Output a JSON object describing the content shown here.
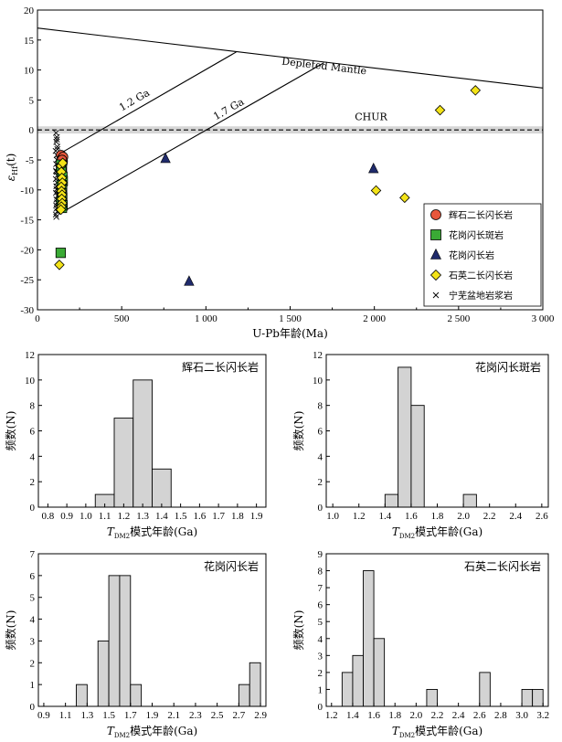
{
  "chart_data": [
    {
      "type": "scatter",
      "xlabel": "U-Pb年龄(Ma)",
      "ylabel_main": "ε",
      "ylabel_sub": "Hf",
      "ylabel_tail": "(t)",
      "xlim": [
        0,
        3000
      ],
      "ylim": [
        -30,
        20
      ],
      "xticks": [
        0,
        500,
        1000,
        1500,
        2000,
        2500,
        3000
      ],
      "xtick_labels": [
        "0",
        "500",
        "1 000",
        "1 500",
        "2 000",
        "2 500",
        "3 000"
      ],
      "yticks": [
        -30,
        -25,
        -20,
        -15,
        -10,
        -5,
        0,
        5,
        10,
        15,
        20
      ],
      "ytick_labels": [
        "-30",
        "-25",
        "-20",
        "-15",
        "-10",
        "-5",
        "0",
        "5",
        "10",
        "15",
        "20"
      ],
      "reference_lines": [
        {
          "name": "Depleted Mantle",
          "label": "Depleted Mantle",
          "x": [
            0,
            3000
          ],
          "y": [
            17,
            7
          ]
        },
        {
          "name": "CHUR",
          "label": "CHUR",
          "x": [
            0,
            3000
          ],
          "y": [
            0,
            0
          ]
        },
        {
          "name": "1.2 Ga",
          "label": "1.2 Ga",
          "x": [
            130,
            1180
          ],
          "y": [
            -4,
            13
          ]
        },
        {
          "name": "1.7 Ga",
          "label": "1.7 Ga",
          "x": [
            130,
            1700
          ],
          "y": [
            -14,
            11.2
          ]
        }
      ],
      "series": [
        {
          "name": "辉石二长闪长岩",
          "marker": "circle",
          "color": "#e8573c",
          "x": [
            140,
            145,
            150,
            148,
            152,
            146
          ],
          "y": [
            -4.2,
            -4.8,
            -5.2,
            -5.6,
            -4.5,
            -5.0
          ]
        },
        {
          "name": "花岗闪长斑岩",
          "marker": "square",
          "color": "#3aaa35",
          "x": [
            140,
            145,
            142,
            148,
            150,
            143,
            146,
            144,
            147,
            141,
            149,
            145,
            138
          ],
          "y": [
            -5.8,
            -6.4,
            -7.0,
            -7.8,
            -8.5,
            -9.2,
            -10.0,
            -10.6,
            -11.3,
            -12.0,
            -12.6,
            -13.0,
            -20.5
          ]
        },
        {
          "name": "花岗闪长岩",
          "marker": "triangle",
          "color": "#1f2a6b",
          "x": [
            760,
            900,
            1995
          ],
          "y": [
            -4.8,
            -25.3,
            -6.5
          ]
        },
        {
          "name": "石英二长闪长岩",
          "marker": "diamond",
          "color": "#f3e318",
          "x": [
            2600,
            2390,
            2010,
            2180,
            140,
            142,
            145,
            148,
            141,
            143,
            146,
            144,
            147,
            142,
            139,
            150,
            130
          ],
          "y": [
            6.6,
            3.3,
            -10.1,
            -11.3,
            -6.0,
            -7.0,
            -8.0,
            -8.8,
            -9.5,
            -10.2,
            -10.8,
            -11.5,
            -12.2,
            -12.8,
            -13.3,
            -5.5,
            -22.5
          ]
        },
        {
          "name": "宁芜盆地岩浆岩",
          "marker": "x",
          "color": "#000000",
          "x": [
            110,
            115,
            112,
            118,
            108,
            114,
            116,
            111,
            119,
            113,
            117,
            109,
            115,
            112,
            120,
            110,
            118,
            113,
            116,
            111,
            114,
            117,
            109,
            112,
            115,
            118,
            110,
            113
          ],
          "y": [
            -0.5,
            -1.2,
            -2.0,
            -2.8,
            -3.5,
            -4.2,
            -5.0,
            -5.7,
            -6.3,
            -7.0,
            -7.6,
            -8.2,
            -8.8,
            -9.4,
            -10.0,
            -10.5,
            -11.0,
            -11.6,
            -12.1,
            -12.6,
            -13.1,
            -13.6,
            -14.1,
            -14.5,
            -1.6,
            -3.2,
            -6.8,
            -9.9
          ]
        }
      ],
      "legend_position": "lower-right"
    },
    {
      "type": "bar",
      "panel_title": "辉石二长闪长岩",
      "xlabel_pre": "T",
      "xlabel_sub": "DM2",
      "xlabel_post": "模式年龄(Ga)",
      "ylabel": "频数(N)",
      "xlim": [
        0.75,
        1.95
      ],
      "ylim": [
        0,
        12
      ],
      "bin_width": 0.1,
      "bin_centers": [
        1.1,
        1.2,
        1.3,
        1.4
      ],
      "values": [
        1,
        7,
        10,
        3
      ],
      "xticks": [
        "0.8",
        "0.9",
        "1.0",
        "1.1",
        "1.2",
        "1.3",
        "1.4",
        "1.5",
        "1.6",
        "1.7",
        "1.8",
        "1.9"
      ],
      "yticks": [
        "0",
        "2",
        "4",
        "6",
        "8",
        "10",
        "12"
      ]
    },
    {
      "type": "bar",
      "panel_title": "花岗闪长斑岩",
      "xlabel_pre": "T",
      "xlabel_sub": "DM2",
      "xlabel_post": "模式年龄(Ga)",
      "ylabel": "频数(N)",
      "xlim": [
        0.95,
        2.65
      ],
      "ylim": [
        0,
        12
      ],
      "bin_width": 0.1,
      "bin_centers": [
        1.45,
        1.55,
        1.65,
        2.05
      ],
      "values": [
        1,
        11,
        8,
        1
      ],
      "xticks": [
        "1.0",
        "1.2",
        "1.4",
        "1.6",
        "1.8",
        "2.0",
        "2.2",
        "2.4",
        "2.6"
      ],
      "yticks": [
        "0",
        "2",
        "4",
        "6",
        "8",
        "10",
        "12"
      ]
    },
    {
      "type": "bar",
      "panel_title": "花岗闪长岩",
      "xlabel_pre": "T",
      "xlabel_sub": "DM2",
      "xlabel_post": "模式年龄(Ga)",
      "ylabel": "频数(N)",
      "xlim": [
        0.85,
        2.95
      ],
      "ylim": [
        0,
        7
      ],
      "bin_width": 0.1,
      "bin_centers": [
        1.25,
        1.45,
        1.55,
        1.65,
        1.75,
        2.75,
        2.85
      ],
      "values": [
        1,
        3,
        6,
        6,
        1,
        1,
        2
      ],
      "xticks": [
        "0.9",
        "1.1",
        "1.3",
        "1.5",
        "1.7",
        "1.9",
        "2.1",
        "2.3",
        "2.5",
        "2.7",
        "2.9"
      ],
      "yticks": [
        "0",
        "1",
        "2",
        "3",
        "4",
        "5",
        "6",
        "7"
      ]
    },
    {
      "type": "bar",
      "panel_title": "石英二长闪长岩",
      "xlabel_pre": "T",
      "xlabel_sub": "DM2",
      "xlabel_post": "模式年龄(Ga)",
      "ylabel": "频数(N)",
      "xlim": [
        1.15,
        3.25
      ],
      "ylim": [
        0,
        9
      ],
      "bin_width": 0.1,
      "bin_centers": [
        1.35,
        1.45,
        1.55,
        1.65,
        2.15,
        2.65,
        3.05,
        3.15
      ],
      "values": [
        2,
        3,
        8,
        4,
        1,
        2,
        1,
        1
      ],
      "xticks": [
        "1.2",
        "1.4",
        "1.6",
        "1.8",
        "2.0",
        "2.2",
        "2.4",
        "2.6",
        "2.8",
        "3.0",
        "3.2"
      ],
      "yticks": [
        "0",
        "1",
        "2",
        "3",
        "4",
        "5",
        "6",
        "7",
        "8",
        "9"
      ]
    }
  ]
}
